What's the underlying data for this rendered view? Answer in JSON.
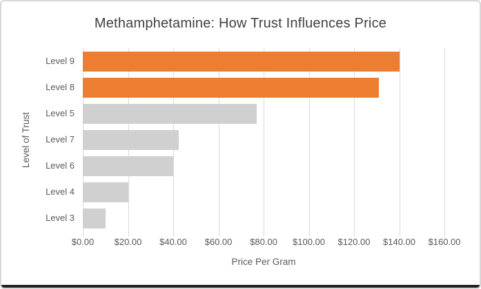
{
  "window": {
    "background": "#ffffff",
    "frame_border_color": "#d7d7d7",
    "bottom_edge_color": "#212121"
  },
  "chart_data": {
    "type": "bar",
    "orientation": "horizontal",
    "title": "Methamphetamine: How Trust Influences Price",
    "xlabel": "Price Per Gram",
    "ylabel": "Level of Trust",
    "categories": [
      "Level 9",
      "Level 8",
      "Level 5",
      "Level 7",
      "Level 6",
      "Level 4",
      "Level 3"
    ],
    "values": [
      140,
      131,
      77,
      42.5,
      40,
      20,
      10
    ],
    "bar_colors": [
      "#ED7D31",
      "#ED7D31",
      "#D0D0D0",
      "#D0D0D0",
      "#D0D0D0",
      "#D0D0D0",
      "#D0D0D0"
    ],
    "xlim": [
      0,
      160
    ],
    "xticks": [
      0,
      20,
      40,
      60,
      80,
      100,
      120,
      140,
      160
    ],
    "xtick_labels": [
      "$0.00",
      "$20.00",
      "$40.00",
      "$60.00",
      "$80.00",
      "$100.00",
      "$120.00",
      "$140.00",
      "$160.00"
    ],
    "grid": true,
    "gridline_color": "#d9d9d9",
    "legend": false,
    "colors": {
      "highlight": "#ED7D31",
      "default": "#D0D0D0",
      "title_text": "#404040",
      "axis_text": "#595959"
    }
  }
}
